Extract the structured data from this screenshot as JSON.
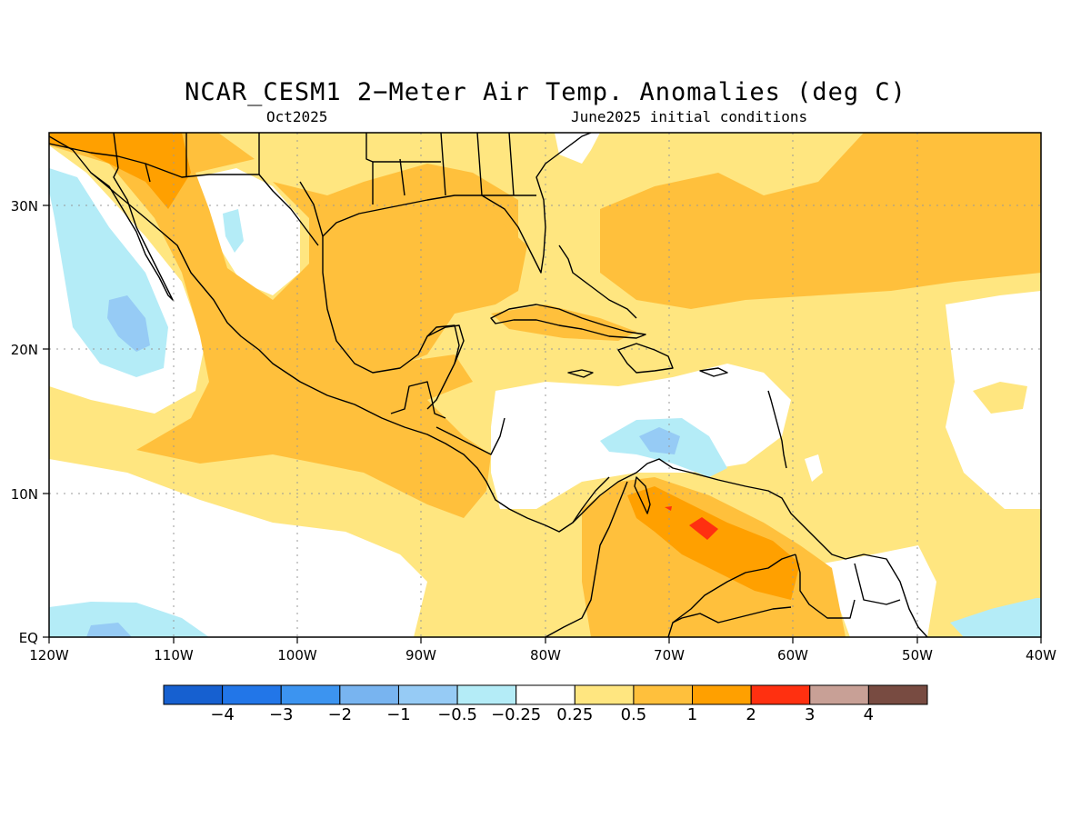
{
  "title": "NCAR_CESM1 2−Meter Air Temp. Anomalies (deg C)",
  "valid_month": "Oct2025",
  "init_conditions": "June2025 initial conditions",
  "axes": {
    "x_ticks": [
      "120W",
      "110W",
      "100W",
      "90W",
      "80W",
      "70W",
      "60W",
      "50W",
      "40W"
    ],
    "y_ticks": [
      "EQ",
      "10N",
      "20N",
      "30N"
    ]
  },
  "colorbar": {
    "labels": [
      "−4",
      "−3",
      "−2",
      "−1",
      "−0.5",
      "−0.25",
      "0.25",
      "0.5",
      "1",
      "2",
      "3",
      "4"
    ],
    "colors": [
      "#1660d0",
      "#2276e8",
      "#3c94f0",
      "#78b4f0",
      "#96cbf5",
      "#b4ecf7",
      "#ffffff",
      "#ffe680",
      "#ffc03c",
      "#ffa000",
      "#ff3010",
      "#c8a096",
      "#784b41"
    ]
  },
  "colors": {
    "white": "#ffffff",
    "light_yellow": "#ffe680",
    "light_orange": "#ffc03c",
    "orange": "#ffa000",
    "red": "#ff3010",
    "light_cyan": "#b4ecf7",
    "light_blue": "#96cbf5",
    "coast": "#000000",
    "grid": "#999999"
  }
}
